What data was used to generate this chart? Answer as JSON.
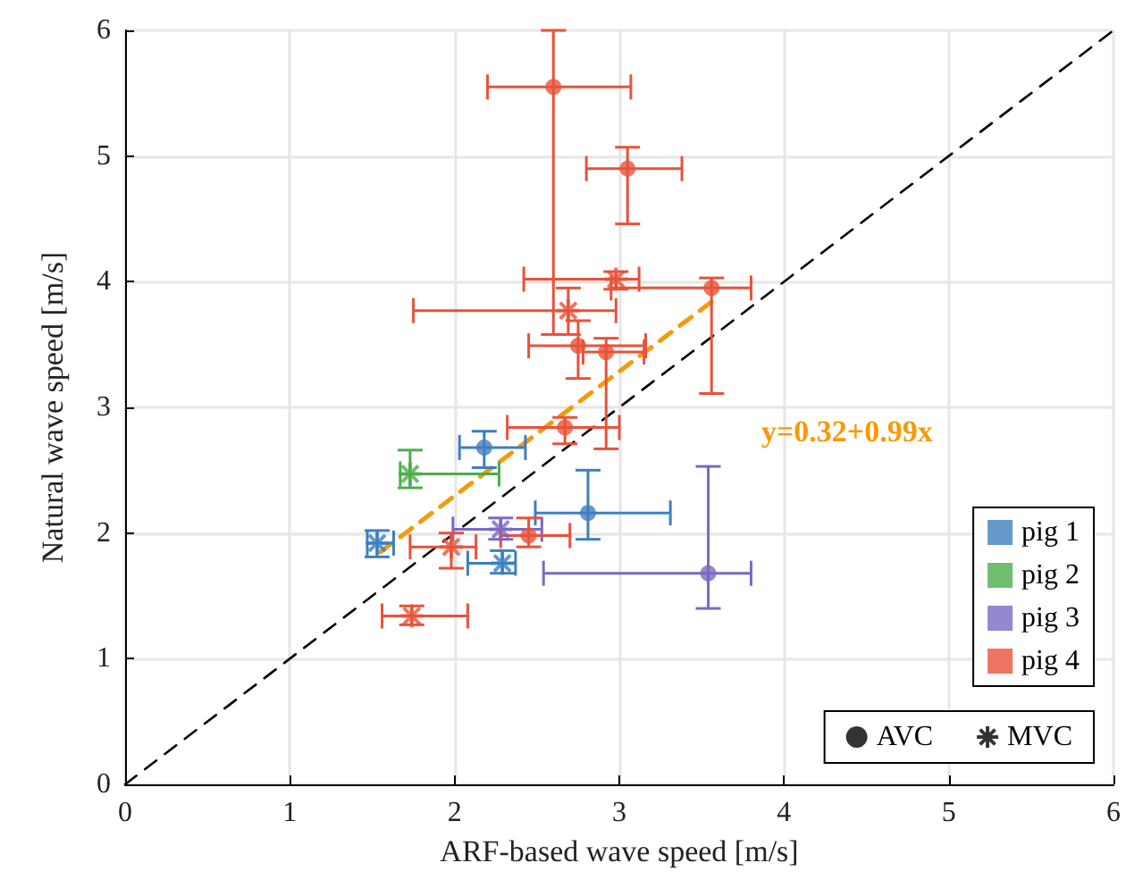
{
  "chart_data": {
    "type": "scatter",
    "xlabel": "ARF-based wave speed [m/s]",
    "ylabel": "Natural wave speed [m/s]",
    "xlim": [
      0,
      6
    ],
    "ylim": [
      0,
      6
    ],
    "xticks": [
      0,
      1,
      2,
      3,
      4,
      5,
      6
    ],
    "yticks": [
      0,
      1,
      2,
      3,
      4,
      5,
      6
    ],
    "grid": true,
    "legend": "bottom right",
    "annotations": [
      "y=0.32+0.99x"
    ],
    "series": [
      {
        "type": "line",
        "color": "#000000",
        "line_style": "dashed",
        "marker": "none",
        "x": [
          0,
          6
        ],
        "values": [
          0,
          6
        ]
      },
      {
        "type": "line",
        "color": "#f59a0a",
        "line_style": "dashed",
        "marker": "none",
        "x": [
          1.55,
          3.6
        ],
        "values": [
          1.85,
          3.88
        ]
      },
      {
        "name": "pig 1",
        "color": "#3f7fbf",
        "marker": "circle",
        "x": [
          2.18,
          2.81
        ],
        "values": [
          2.68,
          2.16
        ],
        "xerrors": [
          [
            2.03,
            2.43
          ],
          [
            2.49,
            3.31
          ]
        ],
        "errors": [
          [
            2.52,
            2.81
          ],
          [
            1.95,
            2.5
          ]
        ]
      },
      {
        "color": "#3f7fbf",
        "marker": "cross",
        "x": [
          1.53,
          2.29
        ],
        "values": [
          1.92,
          1.76
        ],
        "xerrors": [
          [
            1.47,
            1.63
          ],
          [
            2.08,
            2.37
          ]
        ],
        "errors": [
          [
            1.81,
            2.02
          ],
          [
            1.68,
            1.86
          ]
        ]
      },
      {
        "name": "pig 2",
        "color": "#4aae4a",
        "marker": "circle"
      },
      {
        "color": "#4aae4a",
        "marker": "cross",
        "x": [
          1.73
        ],
        "values": [
          2.47
        ],
        "xerrors": [
          [
            1.67,
            2.27
          ]
        ],
        "errors": [
          [
            2.36,
            2.66
          ]
        ]
      },
      {
        "name": "pig 3",
        "color": "#7b68c4",
        "marker": "circle",
        "x": [
          3.54
        ],
        "values": [
          1.68
        ],
        "xerrors": [
          [
            2.54,
            3.8
          ]
        ],
        "errors": [
          [
            1.4,
            2.53
          ]
        ]
      },
      {
        "color": "#7b68c4",
        "marker": "cross",
        "x": [
          2.28
        ],
        "values": [
          2.03
        ],
        "xerrors": [
          [
            1.99,
            2.53
          ]
        ],
        "errors": [
          [
            1.95,
            2.12
          ]
        ]
      },
      {
        "name": "pig 4",
        "color": "#e8523a",
        "marker": "circle",
        "x": [
          2.6,
          3.05,
          3.56,
          2.75,
          2.92,
          2.67,
          2.45
        ],
        "values": [
          5.55,
          4.9,
          3.95,
          3.49,
          3.44,
          2.84,
          1.98
        ],
        "xerrors": [
          [
            2.2,
            3.07
          ],
          [
            2.8,
            3.38
          ],
          [
            2.95,
            3.8
          ],
          [
            2.45,
            3.16
          ],
          [
            2.78,
            3.15
          ],
          [
            2.32,
            3.0
          ],
          [
            2.28,
            2.7
          ]
        ],
        "errors": [
          [
            3.58,
            6
          ],
          [
            4.46,
            5.07
          ],
          [
            3.11,
            4.03
          ],
          [
            3.23,
            3.69
          ],
          [
            2.67,
            3.55
          ],
          [
            2.71,
            2.92
          ],
          [
            1.89,
            2.12
          ]
        ]
      },
      {
        "color": "#e8523a",
        "marker": "cross",
        "x": [
          2.98,
          2.69,
          1.98,
          1.74
        ],
        "values": [
          4.02,
          3.77,
          1.89,
          1.34
        ],
        "xerrors": [
          [
            2.42,
            3.12
          ],
          [
            1.75,
            2.98
          ],
          [
            1.73,
            2.13
          ],
          [
            1.56,
            2.08
          ]
        ],
        "errors": [
          [
            3.94,
            4.08
          ],
          [
            3.58,
            3.95
          ],
          [
            1.72,
            2.0
          ],
          [
            1.27,
            1.42
          ]
        ]
      },
      {
        "name": "AVC",
        "color": "#000000",
        "marker": "circle"
      },
      {
        "name": "MVC",
        "color": "#000000",
        "marker": "cross"
      }
    ]
  }
}
